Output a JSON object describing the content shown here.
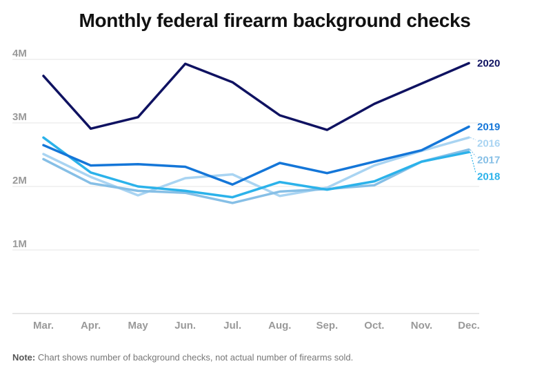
{
  "chart_data": {
    "type": "line",
    "title": "Monthly federal firearm background checks",
    "xlabel": "",
    "ylabel": "",
    "categories": [
      "Mar.",
      "Apr.",
      "May",
      "Jun.",
      "Jul.",
      "Aug.",
      "Sep.",
      "Oct.",
      "Nov.",
      "Dec."
    ],
    "ylim": [
      0,
      4000000
    ],
    "yticks": [
      {
        "value": 1000000,
        "label": "1M"
      },
      {
        "value": 2000000,
        "label": "2M"
      },
      {
        "value": 3000000,
        "label": "3M"
      },
      {
        "value": 4000000,
        "label": "4M"
      }
    ],
    "grid": true,
    "series": [
      {
        "name": "2016",
        "color": "#a9d4f2",
        "values": [
          2510000,
          2150000,
          1860000,
          2130000,
          2190000,
          1850000,
          1980000,
          2330000,
          2560000,
          2770000
        ]
      },
      {
        "name": "2017",
        "color": "#86bfe6",
        "values": [
          2430000,
          2050000,
          1930000,
          1900000,
          1740000,
          1920000,
          1960000,
          2020000,
          2390000,
          2580000
        ]
      },
      {
        "name": "2018",
        "color": "#2bb2ea",
        "values": [
          2770000,
          2220000,
          2000000,
          1930000,
          1830000,
          2070000,
          1950000,
          2080000,
          2390000,
          2540000
        ]
      },
      {
        "name": "2019",
        "color": "#1476d8",
        "values": [
          2650000,
          2330000,
          2350000,
          2310000,
          2030000,
          2370000,
          2210000,
          2390000,
          2570000,
          2940000
        ]
      },
      {
        "name": "2020",
        "color": "#0f1261",
        "values": [
          3740000,
          2910000,
          3090000,
          3930000,
          3640000,
          3120000,
          2890000,
          3300000,
          3620000,
          3940000
        ]
      }
    ],
    "note_label": "Note:",
    "note": "Chart shows number of background checks, not actual number of firearms sold."
  }
}
